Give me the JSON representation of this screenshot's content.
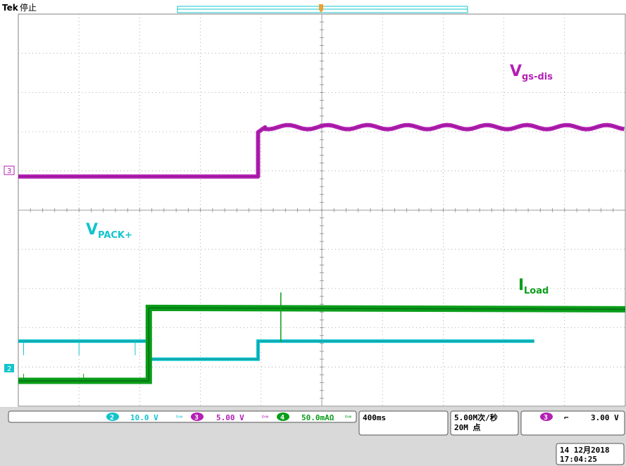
{
  "header": {
    "brand": "Tek",
    "status": "停止"
  },
  "colors": {
    "ch1": "#13c4cc",
    "ch2": "#13c4cc",
    "ch3": "#b41fb4",
    "ch4": "#0a9d1a",
    "bg": "#ffffff",
    "grid": "#9a9a9a",
    "panel": "#d9d9d9"
  },
  "chart_data": {
    "type": "line",
    "x_unit": "ms",
    "x": [
      -1600,
      -1200,
      -740,
      -740,
      -20,
      -20,
      1800
    ],
    "series": [
      {
        "name": "V_PACK+",
        "channel": "2",
        "values": [
          6.7,
          6.7,
          6.7,
          2.1,
          2.1,
          6.7,
          6.7
        ]
      },
      {
        "name": "V_gs-dis",
        "channel": "3",
        "values": [
          -0.7,
          -0.7,
          -0.7,
          -0.7,
          -0.7,
          5.4,
          5.6
        ]
      },
      {
        "name": "I_Load",
        "channel": "4",
        "values": [
          0,
          0,
          0,
          0.5,
          0.5,
          0.5,
          0.5
        ]
      }
    ],
    "grid": true
  },
  "waveform_labels": {
    "vgs_main": "V",
    "vgs_sub": "gs-dis",
    "vpack_main": "V",
    "vpack_sub": "PACK+",
    "iload_main": "I",
    "iload_sub": "Load"
  },
  "channel_markers": {
    "ch3": "3",
    "ch2": "2"
  },
  "bottom_bar": {
    "ch2_num": "2",
    "ch2_scale": "10.0 V",
    "ch3_num": "3",
    "ch3_scale": "5.00 V",
    "ch4_num": "4",
    "ch4_scale": "50.0mAΩ",
    "bw_glyph": "ᵇʷ",
    "timebase": "400ms",
    "sample_rate": "5.00M次/秒",
    "record_length": "20M 点",
    "trig_channel": "3",
    "trig_slope": "⌐",
    "trig_level": "3.00 V"
  },
  "datetime": {
    "date": "14 12月2018",
    "time": "17:04:25"
  }
}
